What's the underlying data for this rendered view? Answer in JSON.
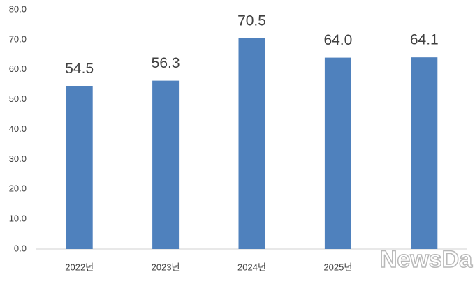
{
  "chart_data": {
    "type": "bar",
    "categories": [
      "2022년",
      "2023년",
      "2024년",
      "2025년",
      null
    ],
    "values": [
      54.5,
      56.3,
      70.5,
      64.0,
      64.1
    ],
    "value_labels": [
      "54.5",
      "56.3",
      "70.5",
      "64.0",
      "64.1"
    ],
    "color": "#4f81bd",
    "ylim": [
      0,
      80
    ],
    "yticks": [
      {
        "value": 0,
        "label": "0.0"
      },
      {
        "value": 10,
        "label": "10.0"
      },
      {
        "value": 20,
        "label": "20.0"
      },
      {
        "value": 30,
        "label": "30.0"
      },
      {
        "value": 40,
        "label": "40.0"
      },
      {
        "value": 50,
        "label": "50.0"
      },
      {
        "value": 60,
        "label": "60.0"
      },
      {
        "value": 70,
        "label": "70.0"
      },
      {
        "value": 80,
        "label": "80.0"
      }
    ],
    "grid": false,
    "watermark": "NewsDa"
  }
}
